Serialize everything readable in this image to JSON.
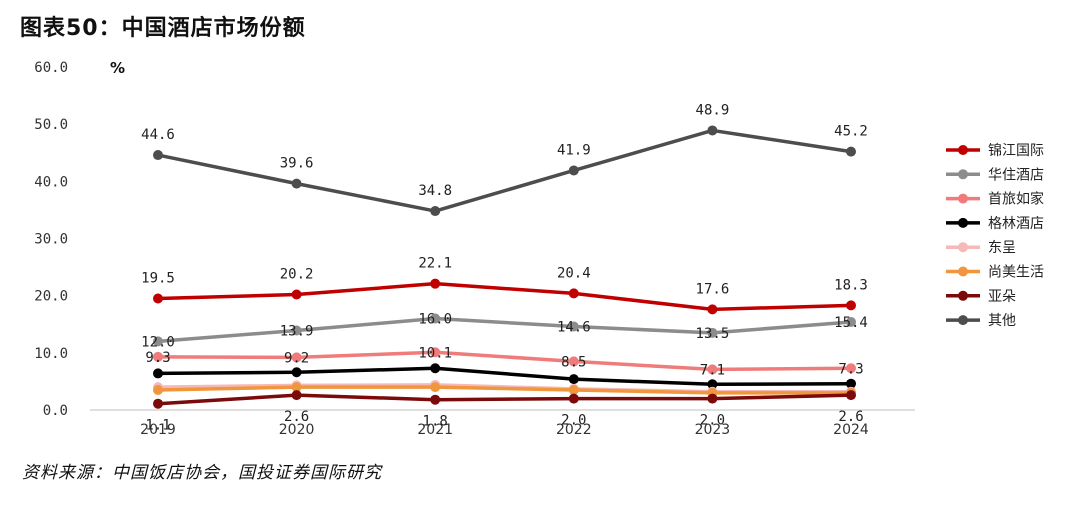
{
  "title": "图表50：中国酒店市场份额",
  "source": "资料来源：中国饭店协会，国投证券国际研究",
  "chart_data": {
    "type": "line",
    "title": "图表50：中国酒店市场份额",
    "ylabel": "%",
    "xlabel": "",
    "x": [
      "2019",
      "2020",
      "2021",
      "2022",
      "2023",
      "2024"
    ],
    "ylim": [
      0,
      60
    ],
    "yticks": [
      "0.0",
      "10.0",
      "20.0",
      "30.0",
      "40.0",
      "50.0",
      "60.0"
    ],
    "grid": false,
    "legend_position": "right",
    "series": [
      {
        "name": "锦江国际",
        "color": "#c00000",
        "values": [
          19.5,
          20.2,
          22.1,
          20.4,
          17.6,
          18.3
        ],
        "labels": [
          "19.5",
          "20.2",
          "22.1",
          "20.4",
          "17.6",
          "18.3"
        ],
        "label_pos": "above"
      },
      {
        "name": "华住酒店",
        "color": "#8c8c8c",
        "values": [
          12.0,
          13.9,
          16.0,
          14.6,
          13.5,
          15.4
        ],
        "labels": [
          "12.0",
          "13.9",
          "16.0",
          "14.6",
          "13.5",
          "15.4"
        ],
        "label_pos": "on"
      },
      {
        "name": "首旅如家",
        "color": "#f07b7b",
        "values": [
          9.3,
          9.2,
          10.1,
          8.5,
          7.1,
          7.3
        ],
        "labels": [
          "9.3",
          "9.2",
          "10.1",
          "8.5",
          "7.1",
          "7.3"
        ],
        "label_pos": "on"
      },
      {
        "name": "格林酒店",
        "color": "#000000",
        "values": [
          6.4,
          6.6,
          7.3,
          5.4,
          4.5,
          4.6
        ],
        "labels": [],
        "label_pos": "none"
      },
      {
        "name": "东呈",
        "color": "#f6b8b8",
        "values": [
          4.0,
          4.3,
          4.4,
          3.7,
          3.2,
          3.2
        ],
        "labels": [],
        "label_pos": "none"
      },
      {
        "name": "尚美生活",
        "color": "#f0963c",
        "values": [
          3.5,
          4.0,
          4.0,
          3.5,
          3.0,
          3.0
        ],
        "labels": [],
        "label_pos": "none"
      },
      {
        "name": "亚朵",
        "color": "#7b0a0a",
        "values": [
          1.1,
          2.6,
          1.8,
          2.0,
          2.0,
          2.6
        ],
        "labels": [
          "1.1",
          "2.6",
          "1.8",
          "2.0",
          "2.0",
          "2.6"
        ],
        "label_pos": "below"
      },
      {
        "name": "其他",
        "color": "#4d4d4d",
        "values": [
          44.6,
          39.6,
          34.8,
          41.9,
          48.9,
          45.2
        ],
        "labels": [
          "44.6",
          "39.6",
          "34.8",
          "41.9",
          "48.9",
          "45.2"
        ],
        "label_pos": "above"
      }
    ]
  }
}
